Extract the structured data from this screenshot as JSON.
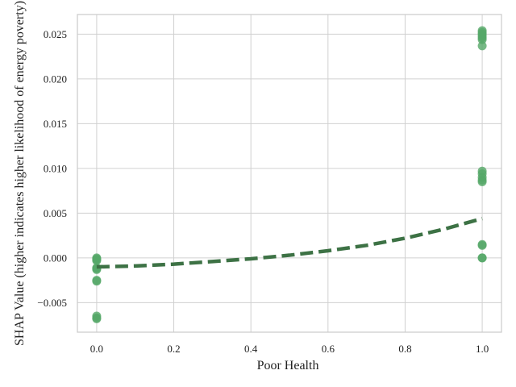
{
  "chart_data": {
    "type": "scatter",
    "title": "",
    "xlabel": "Poor Health",
    "ylabel": "SHAP Value (higher indicates higher likelihood of energy poverty)",
    "xlim": [
      -0.05,
      1.05
    ],
    "ylim": [
      -0.0083,
      0.0272
    ],
    "xticks": [
      0.0,
      0.2,
      0.4,
      0.6,
      0.8,
      1.0
    ],
    "xtick_labels": [
      "0.0",
      "0.2",
      "0.4",
      "0.6",
      "0.8",
      "1.0"
    ],
    "yticks": [
      -0.005,
      0.0,
      0.005,
      0.01,
      0.015,
      0.02,
      0.025
    ],
    "ytick_labels": [
      "−0.005",
      "0.000",
      "0.005",
      "0.010",
      "0.015",
      "0.020",
      "0.025"
    ],
    "grid": true,
    "series": [
      {
        "type": "scatter",
        "color": "#55a868",
        "x": [
          0,
          0,
          0,
          0,
          0,
          0,
          0,
          0,
          0,
          0,
          0,
          0,
          1,
          1,
          1,
          1,
          1,
          1,
          1,
          1,
          1,
          1,
          1,
          1,
          1,
          1,
          1,
          1
        ],
        "y": [
          0.0,
          -0.0001,
          -0.0002,
          -0.0003,
          -0.0011,
          -0.0012,
          -0.0013,
          -0.0025,
          -0.0026,
          -0.0065,
          -0.0067,
          -0.0068,
          0.0,
          0.0,
          0.0014,
          0.0015,
          0.0085,
          0.0087,
          0.009,
          0.0094,
          0.0097,
          0.0237,
          0.0244,
          0.0246,
          0.0248,
          0.025,
          0.0252,
          0.0254
        ]
      },
      {
        "type": "line",
        "style": "dashed",
        "color": "#3d7245",
        "x": [
          0.0,
          0.1,
          0.2,
          0.3,
          0.4,
          0.5,
          0.6,
          0.7,
          0.8,
          0.9,
          1.0
        ],
        "y": [
          -0.001,
          -0.0009,
          -0.0007,
          -0.0004,
          -0.0001,
          0.0003,
          0.0008,
          0.0014,
          0.0022,
          0.0032,
          0.0044
        ]
      }
    ]
  }
}
